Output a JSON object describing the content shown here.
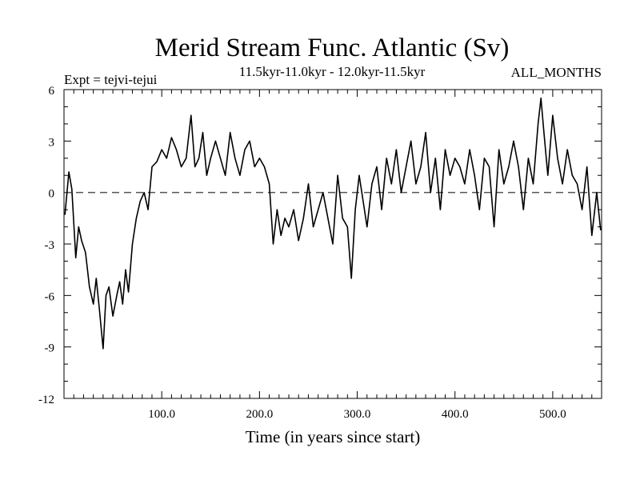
{
  "chart_data": {
    "type": "line",
    "title": "Merid Stream Func. Atlantic (Sv)",
    "subtitle": "11.5kyr-11.0kyr - 12.0kyr-11.5kyr",
    "annotation_left": "Expt = tejvi-tejui",
    "annotation_right": "ALL_MONTHS",
    "xlabel": "Time (in years since start)",
    "ylabel": "",
    "xlim": [
      0,
      550
    ],
    "ylim": [
      -12,
      6
    ],
    "x_ticks": [
      100,
      200,
      300,
      400,
      500
    ],
    "x_tick_labels": [
      "100.0",
      "200.0",
      "300.0",
      "400.0",
      "500.0"
    ],
    "y_ticks": [
      -12,
      -9,
      -6,
      -3,
      0,
      3,
      6
    ],
    "y_tick_labels": [
      "-12",
      "-9",
      "-6",
      "-3",
      "0",
      "3",
      "6"
    ],
    "reference_line": {
      "y": 0,
      "style": "dashed"
    },
    "series": [
      {
        "name": "Merid Stream Func. Atlantic",
        "x": [
          1,
          5,
          8,
          12,
          15,
          18,
          22,
          26,
          30,
          33,
          36,
          40,
          43,
          46,
          50,
          54,
          57,
          60,
          63,
          66,
          70,
          74,
          78,
          82,
          86,
          90,
          95,
          100,
          105,
          110,
          115,
          120,
          125,
          130,
          134,
          138,
          142,
          146,
          150,
          155,
          160,
          165,
          170,
          175,
          180,
          185,
          190,
          195,
          200,
          205,
          210,
          214,
          218,
          222,
          226,
          230,
          235,
          240,
          245,
          250,
          255,
          260,
          265,
          270,
          275,
          280,
          285,
          290,
          294,
          298,
          302,
          306,
          310,
          315,
          320,
          325,
          330,
          335,
          340,
          345,
          350,
          355,
          360,
          365,
          370,
          375,
          380,
          385,
          390,
          395,
          400,
          405,
          410,
          415,
          420,
          425,
          430,
          435,
          440,
          445,
          450,
          455,
          460,
          465,
          470,
          475,
          480,
          485,
          488,
          491,
          495,
          500,
          505,
          510,
          515,
          520,
          525,
          530,
          535,
          540,
          545,
          549
        ],
        "values": [
          -1.3,
          1.2,
          0.2,
          -3.8,
          -2.0,
          -2.8,
          -3.5,
          -5.5,
          -6.5,
          -5.0,
          -6.7,
          -9.1,
          -6.0,
          -5.5,
          -7.2,
          -6.0,
          -5.2,
          -6.5,
          -4.5,
          -5.8,
          -3.0,
          -1.5,
          -0.5,
          0.0,
          -1.0,
          1.5,
          1.8,
          2.5,
          2.0,
          3.2,
          2.5,
          1.5,
          2.0,
          4.5,
          1.5,
          2.0,
          3.5,
          1.0,
          2.0,
          3.0,
          2.0,
          1.0,
          3.5,
          2.0,
          1.0,
          2.5,
          3.0,
          1.5,
          2.0,
          1.5,
          0.5,
          -3.0,
          -1.0,
          -2.5,
          -1.5,
          -2.0,
          -1.0,
          -2.8,
          -1.5,
          0.5,
          -2.0,
          -1.0,
          0.0,
          -1.5,
          -3.0,
          1.0,
          -1.5,
          -2.0,
          -5.0,
          -1.0,
          1.0,
          -0.5,
          -2.0,
          0.5,
          1.5,
          -1.0,
          2.0,
          0.5,
          2.5,
          0.0,
          1.5,
          3.0,
          0.5,
          1.5,
          3.5,
          0.0,
          2.0,
          -1.0,
          2.5,
          1.0,
          2.0,
          1.5,
          0.5,
          2.5,
          1.0,
          -1.0,
          2.0,
          1.5,
          -2.0,
          2.5,
          0.5,
          1.5,
          3.0,
          1.5,
          -1.0,
          2.0,
          0.5,
          4.0,
          5.5,
          3.5,
          1.0,
          4.5,
          2.0,
          0.5,
          2.5,
          1.0,
          0.5,
          -1.0,
          1.5,
          -2.5,
          0.0,
          -2.2
        ]
      }
    ]
  }
}
